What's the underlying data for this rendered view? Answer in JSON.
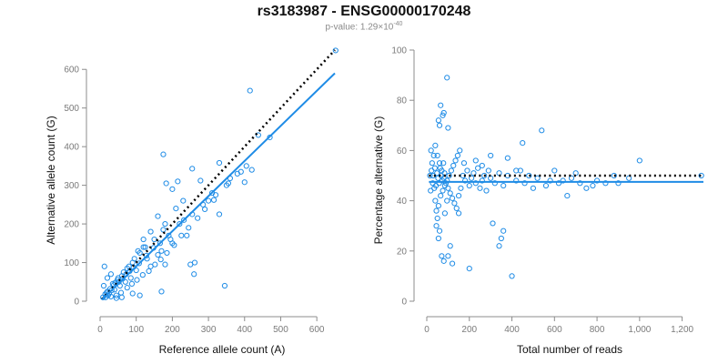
{
  "title": "rs3183987 - ENSG00000170248",
  "subtitle_prefix": "p-value: 1.29×10",
  "subtitle_exponent": "-40",
  "colors": {
    "points": "#1f8ce6",
    "fit": "#1f8ce6",
    "reference": "#000000",
    "axis": "#8c8c8c"
  },
  "chart_data": [
    {
      "type": "scatter",
      "xlabel": "Reference allele count (A)",
      "ylabel": "Alternative allele count (G)",
      "xlim": [
        0,
        650
      ],
      "ylim": [
        0,
        650
      ],
      "xticks": [
        0,
        100,
        200,
        300,
        400,
        500,
        600
      ],
      "yticks": [
        0,
        100,
        200,
        300,
        400,
        500,
        600
      ],
      "xtick_labels": [
        "0",
        "100",
        "200",
        "300",
        "400",
        "500",
        "600"
      ],
      "ytick_labels": [
        "0",
        "100",
        "200",
        "300",
        "400",
        "500",
        "600"
      ],
      "grid": false,
      "fit_line": {
        "x": [
          5,
          650
        ],
        "y": [
          4,
          590
        ]
      },
      "reference_line": {
        "x": [
          5,
          650
        ],
        "y": [
          5,
          650
        ]
      },
      "points": [
        [
          652,
          649
        ],
        [
          415,
          545
        ],
        [
          175,
          380
        ],
        [
          183,
          305
        ],
        [
          255,
          343
        ],
        [
          278,
          312
        ],
        [
          330,
          358
        ],
        [
          350,
          300
        ],
        [
          390,
          335
        ],
        [
          400,
          308
        ],
        [
          470,
          424
        ],
        [
          438,
          430
        ],
        [
          170,
          25
        ],
        [
          345,
          40
        ],
        [
          250,
          95
        ],
        [
          260,
          70
        ],
        [
          262,
          100
        ],
        [
          110,
          15
        ],
        [
          90,
          20
        ],
        [
          60,
          10
        ],
        [
          45,
          8
        ],
        [
          30,
          12
        ],
        [
          120,
          140
        ],
        [
          140,
          90
        ],
        [
          160,
          120
        ],
        [
          200,
          150
        ],
        [
          210,
          240
        ],
        [
          220,
          200
        ],
        [
          230,
          260
        ],
        [
          240,
          170
        ],
        [
          300,
          260
        ],
        [
          310,
          280
        ],
        [
          190,
          170
        ],
        [
          180,
          200
        ],
        [
          170,
          130
        ],
        [
          150,
          160
        ],
        [
          130,
          110
        ],
        [
          100,
          80
        ],
        [
          85,
          60
        ],
        [
          70,
          50
        ],
        [
          55,
          40
        ],
        [
          40,
          30
        ],
        [
          25,
          20
        ],
        [
          15,
          10
        ],
        [
          20,
          25
        ],
        [
          35,
          45
        ],
        [
          50,
          60
        ],
        [
          65,
          75
        ],
        [
          80,
          90
        ],
        [
          95,
          110
        ],
        [
          110,
          125
        ],
        [
          125,
          140
        ],
        [
          10,
          40
        ],
        [
          12,
          90
        ],
        [
          20,
          60
        ],
        [
          30,
          70
        ],
        [
          45,
          15
        ],
        [
          58,
          22
        ],
        [
          75,
          35
        ],
        [
          88,
          45
        ],
        [
          102,
          55
        ],
        [
          118,
          68
        ],
        [
          135,
          78
        ],
        [
          152,
          95
        ],
        [
          168,
          108
        ],
        [
          185,
          125
        ],
        [
          205,
          145
        ],
        [
          225,
          170
        ],
        [
          245,
          190
        ],
        [
          270,
          215
        ],
        [
          290,
          238
        ],
        [
          315,
          262
        ],
        [
          360,
          318
        ],
        [
          380,
          330
        ],
        [
          405,
          350
        ],
        [
          200,
          290
        ],
        [
          215,
          310
        ],
        [
          160,
          220
        ],
        [
          175,
          185
        ],
        [
          140,
          180
        ],
        [
          120,
          160
        ],
        [
          105,
          130
        ],
        [
          90,
          100
        ],
        [
          75,
          85
        ],
        [
          60,
          65
        ],
        [
          48,
          55
        ],
        [
          38,
          42
        ],
        [
          28,
          32
        ],
        [
          18,
          22
        ],
        [
          8,
          10
        ],
        [
          14,
          18
        ],
        [
          22,
          15
        ],
        [
          32,
          28
        ],
        [
          42,
          48
        ],
        [
          52,
          50
        ],
        [
          62,
          58
        ],
        [
          72,
          70
        ],
        [
          82,
          78
        ],
        [
          92,
          88
        ],
        [
          108,
          98
        ],
        [
          128,
          118
        ],
        [
          148,
          138
        ],
        [
          166,
          150
        ],
        [
          195,
          160
        ],
        [
          232,
          210
        ],
        [
          255,
          225
        ],
        [
          285,
          250
        ],
        [
          320,
          275
        ],
        [
          355,
          305
        ],
        [
          420,
          340
        ],
        [
          330,
          225
        ],
        [
          180,
          95
        ]
      ]
    },
    {
      "type": "scatter",
      "xlabel": "Total number of reads",
      "ylabel": "Percentage alternative (G)",
      "xlim": [
        0,
        1300
      ],
      "ylim": [
        0,
        100
      ],
      "xticks": [
        0,
        200,
        400,
        600,
        800,
        1000,
        1200
      ],
      "yticks": [
        0,
        20,
        40,
        60,
        80,
        100
      ],
      "xtick_labels": [
        "0",
        "200",
        "400",
        "600",
        "800",
        "1,000",
        "1,200"
      ],
      "ytick_labels": [
        "0",
        "20",
        "40",
        "60",
        "80",
        "100"
      ],
      "grid": false,
      "fit_line": {
        "x": [
          10,
          1300
        ],
        "y": [
          47.5,
          47.5
        ]
      },
      "reference_line": {
        "x": [
          10,
          1300
        ],
        "y": [
          50,
          50
        ]
      },
      "points": [
        [
          95,
          89
        ],
        [
          65,
          78
        ],
        [
          80,
          75
        ],
        [
          75,
          74
        ],
        [
          55,
          72
        ],
        [
          60,
          70
        ],
        [
          100,
          69
        ],
        [
          540,
          68
        ],
        [
          450,
          63
        ],
        [
          1000,
          56
        ],
        [
          880,
          50
        ],
        [
          1290,
          50
        ],
        [
          840,
          47
        ],
        [
          640,
          48
        ],
        [
          700,
          51
        ],
        [
          750,
          45
        ],
        [
          400,
          10
        ],
        [
          200,
          13
        ],
        [
          340,
          22
        ],
        [
          350,
          25
        ],
        [
          360,
          28
        ],
        [
          310,
          31
        ],
        [
          70,
          18
        ],
        [
          80,
          16
        ],
        [
          100,
          18
        ],
        [
          120,
          15
        ],
        [
          110,
          22
        ],
        [
          60,
          28
        ],
        [
          50,
          33
        ],
        [
          45,
          36
        ],
        [
          40,
          40
        ],
        [
          55,
          38
        ],
        [
          65,
          42
        ],
        [
          75,
          44
        ],
        [
          85,
          46
        ],
        [
          95,
          48
        ],
        [
          105,
          50
        ],
        [
          115,
          52
        ],
        [
          125,
          54
        ],
        [
          135,
          56
        ],
        [
          145,
          58
        ],
        [
          155,
          60
        ],
        [
          35,
          45
        ],
        [
          30,
          50
        ],
        [
          25,
          55
        ],
        [
          20,
          60
        ],
        [
          40,
          62
        ],
        [
          50,
          58
        ],
        [
          60,
          55
        ],
        [
          70,
          52
        ],
        [
          80,
          49
        ],
        [
          90,
          47
        ],
        [
          100,
          45
        ],
        [
          110,
          43
        ],
        [
          120,
          41
        ],
        [
          130,
          39
        ],
        [
          140,
          37
        ],
        [
          150,
          35
        ],
        [
          160,
          45
        ],
        [
          170,
          50
        ],
        [
          180,
          48
        ],
        [
          190,
          52
        ],
        [
          200,
          46
        ],
        [
          210,
          49
        ],
        [
          220,
          51
        ],
        [
          230,
          47
        ],
        [
          240,
          53
        ],
        [
          250,
          45
        ],
        [
          260,
          48
        ],
        [
          270,
          50
        ],
        [
          280,
          44
        ],
        [
          290,
          52
        ],
        [
          300,
          49
        ],
        [
          320,
          47
        ],
        [
          340,
          51
        ],
        [
          360,
          46
        ],
        [
          380,
          50
        ],
        [
          420,
          48
        ],
        [
          440,
          52
        ],
        [
          460,
          47
        ],
        [
          480,
          50
        ],
        [
          500,
          45
        ],
        [
          520,
          49
        ],
        [
          560,
          46
        ],
        [
          580,
          48
        ],
        [
          600,
          52
        ],
        [
          620,
          47
        ],
        [
          660,
          42
        ],
        [
          680,
          49
        ],
        [
          720,
          47
        ],
        [
          780,
          46
        ],
        [
          800,
          48
        ],
        [
          900,
          47
        ],
        [
          950,
          49
        ],
        [
          45,
          30
        ],
        [
          55,
          25
        ],
        [
          85,
          35
        ],
        [
          95,
          40
        ],
        [
          150,
          42
        ],
        [
          175,
          55
        ],
        [
          230,
          56
        ],
        [
          260,
          54
        ],
        [
          300,
          58
        ],
        [
          380,
          57
        ],
        [
          420,
          52
        ],
        [
          15,
          50
        ],
        [
          18,
          44
        ],
        [
          22,
          52
        ],
        [
          28,
          47
        ],
        [
          33,
          58
        ],
        [
          38,
          53
        ],
        [
          43,
          46
        ],
        [
          48,
          51
        ],
        [
          53,
          49
        ],
        [
          58,
          47
        ],
        [
          63,
          53
        ],
        [
          68,
          50
        ],
        [
          73,
          48
        ],
        [
          78,
          55
        ],
        [
          83,
          51
        ]
      ]
    }
  ]
}
